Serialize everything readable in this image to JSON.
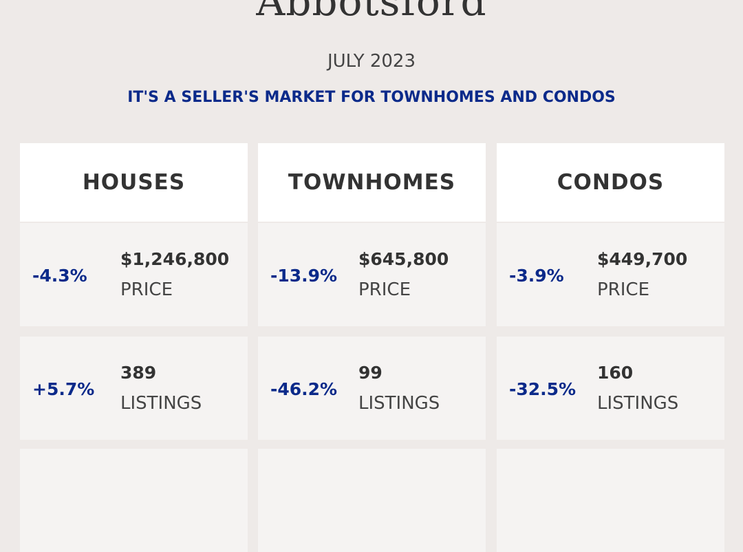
{
  "header": {
    "title": "Abbotsford",
    "date": "JULY 2023",
    "subtitle": "IT'S A SELLER'S MARKET FOR TOWNHOMES AND CONDOS"
  },
  "columns": [
    {
      "title": "HOUSES",
      "rows": [
        {
          "change": "-4.3%",
          "value": "$1,246,800",
          "label": "PRICE"
        },
        {
          "change": "+5.7%",
          "value": "389",
          "label": "LISTINGS"
        }
      ]
    },
    {
      "title": "TOWNHOMES",
      "rows": [
        {
          "change": "-13.9%",
          "value": "$645,800",
          "label": "PRICE"
        },
        {
          "change": "-46.2%",
          "value": "99",
          "label": "LISTINGS"
        }
      ]
    },
    {
      "title": "CONDOS",
      "rows": [
        {
          "change": "-3.9%",
          "value": "$449,700",
          "label": "PRICE"
        },
        {
          "change": "-32.5%",
          "value": "160",
          "label": "LISTINGS"
        }
      ]
    }
  ]
}
